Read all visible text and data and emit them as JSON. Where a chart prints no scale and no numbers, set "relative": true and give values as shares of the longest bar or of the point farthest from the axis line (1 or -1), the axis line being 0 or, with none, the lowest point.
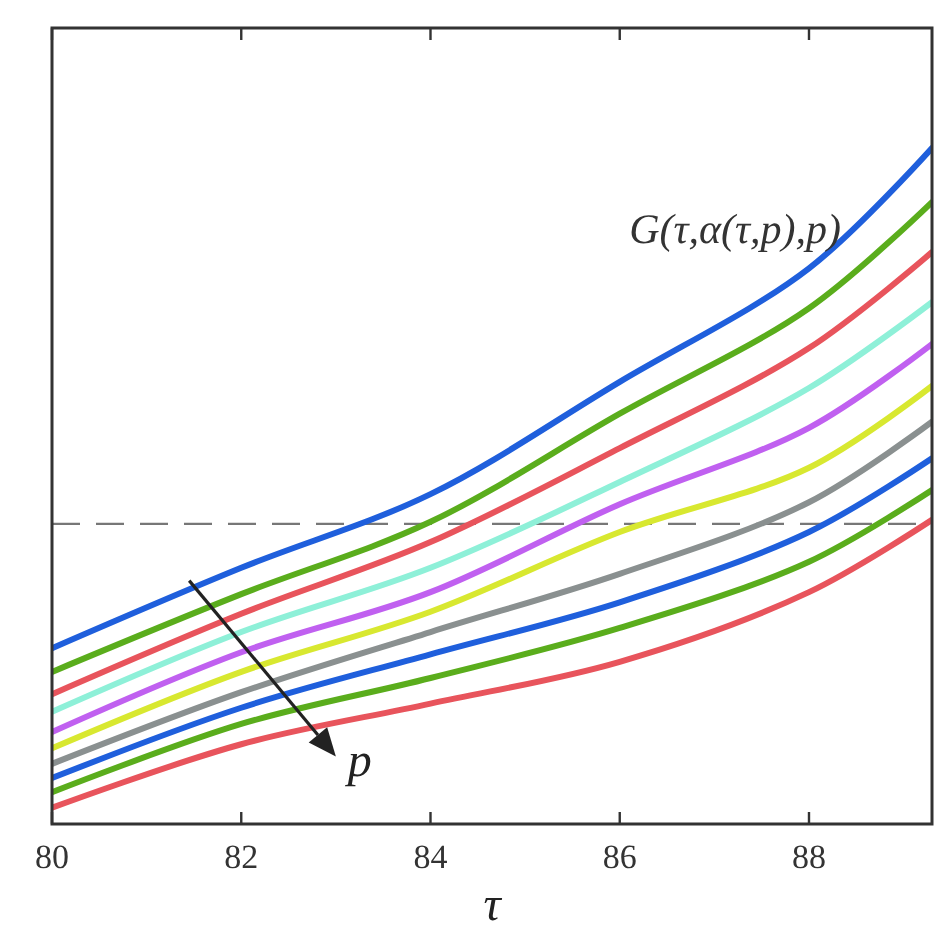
{
  "chart_data": {
    "type": "line",
    "relative": true,
    "xlabel": "τ",
    "x": [
      80,
      82,
      84,
      86,
      88,
      89.3
    ],
    "xlim": [
      80,
      89.3
    ],
    "xticks": [
      80,
      82,
      84,
      86,
      88
    ],
    "line_style": "solid",
    "marker": "none",
    "series": [
      {
        "color": "#1f5fdc",
        "values": [
          0.26,
          0.379,
          0.488,
          0.654,
          0.822,
          1
        ]
      },
      {
        "color": "#5aad1c",
        "values": [
          0.225,
          0.34,
          0.447,
          0.607,
          0.763,
          0.92
        ]
      },
      {
        "color": "#e8545c",
        "values": [
          0.192,
          0.311,
          0.417,
          0.556,
          0.704,
          0.846
        ]
      },
      {
        "color": "#8ef0d8",
        "values": [
          0.166,
          0.284,
          0.379,
          0.506,
          0.645,
          0.772
        ]
      },
      {
        "color": "#c060f0",
        "values": [
          0.136,
          0.254,
          0.343,
          0.473,
          0.586,
          0.71
        ]
      },
      {
        "color": "#d8e830",
        "values": [
          0.112,
          0.225,
          0.314,
          0.432,
          0.527,
          0.648
        ]
      },
      {
        "color": "#8a9090",
        "values": [
          0.089,
          0.195,
          0.284,
          0.37,
          0.476,
          0.595
        ]
      },
      {
        "color": "#1f5fdc",
        "values": [
          0.068,
          0.172,
          0.251,
          0.328,
          0.432,
          0.541
        ]
      },
      {
        "color": "#5aad1c",
        "values": [
          0.047,
          0.148,
          0.216,
          0.29,
          0.388,
          0.494
        ]
      },
      {
        "color": "#e8545c",
        "values": [
          0.024,
          0.118,
          0.178,
          0.24,
          0.343,
          0.45
        ]
      }
    ],
    "ref_lines": [
      {
        "axis": "y",
        "value": 0.444,
        "color": "#777777",
        "line_style": "dashed"
      }
    ],
    "annotations": [
      "G(τ,α(τ,p),p)",
      "p"
    ]
  }
}
